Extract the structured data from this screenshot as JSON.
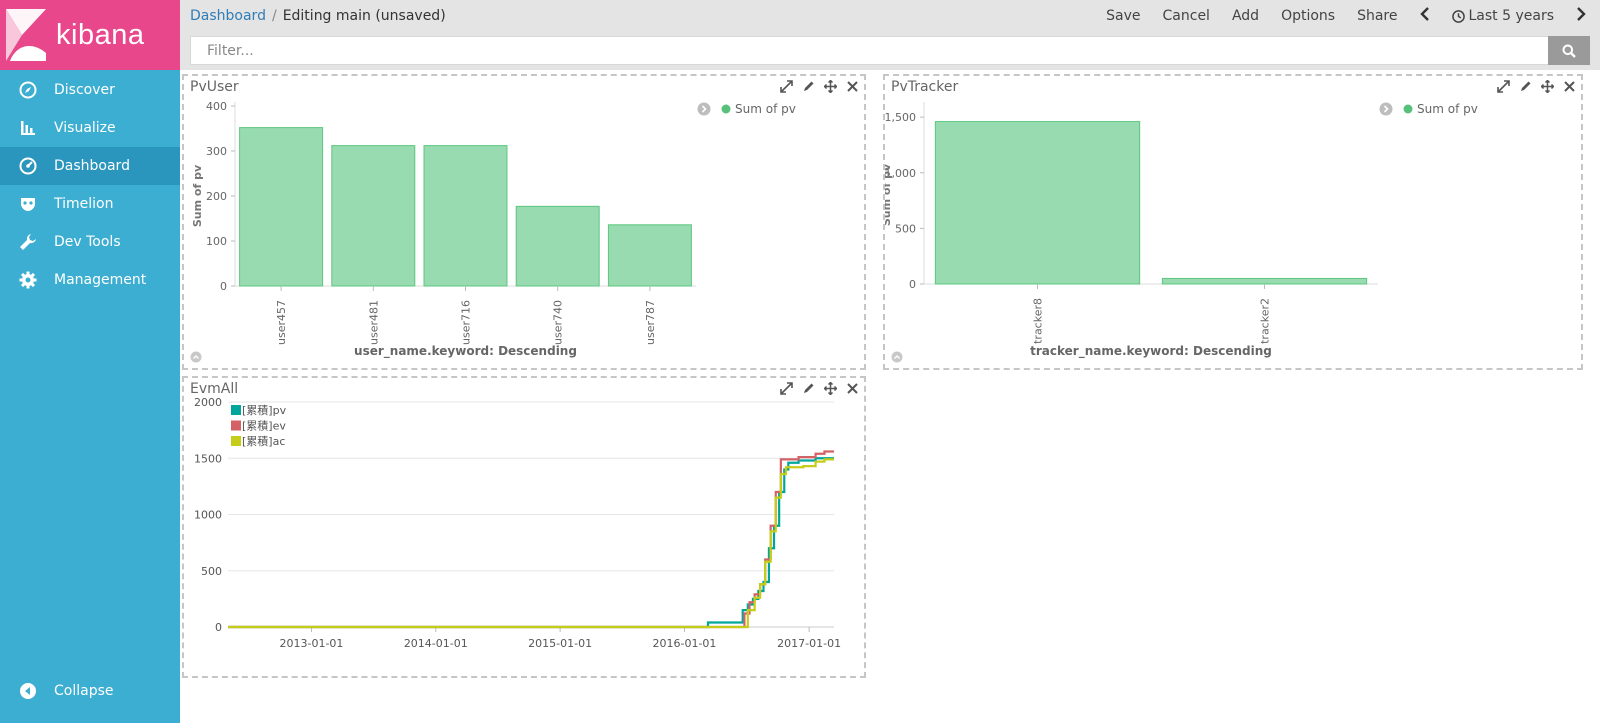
{
  "brand": {
    "name": "kibana"
  },
  "sidebar": {
    "items": [
      {
        "label": "Discover",
        "icon": "compass-icon"
      },
      {
        "label": "Visualize",
        "icon": "bar-chart-icon"
      },
      {
        "label": "Dashboard",
        "icon": "dashboard-gauge-icon",
        "active": true
      },
      {
        "label": "Timelion",
        "icon": "timelion-mask-icon"
      },
      {
        "label": "Dev Tools",
        "icon": "wrench-icon"
      },
      {
        "label": "Management",
        "icon": "gear-icon"
      }
    ],
    "collapse_label": "Collapse"
  },
  "topbar": {
    "breadcrumb_link": "Dashboard",
    "breadcrumb_sep": "/",
    "breadcrumb_current": "Editing main (unsaved)",
    "actions": {
      "save": "Save",
      "cancel": "Cancel",
      "add": "Add",
      "options": "Options",
      "share": "Share"
    },
    "time_range": "Last 5 years"
  },
  "filter": {
    "placeholder": "Filter..."
  },
  "colors": {
    "bar": "#98dbb0",
    "bar_stroke": "#5cc77f",
    "legend_dot": "#57c17b",
    "pv": "#00a69b",
    "ev": "#d36165",
    "ac": "#c6cd18",
    "sidebar": "#3caed2",
    "brand": "#e8488b"
  },
  "panels": {
    "pvuser": {
      "title": "PvUser"
    },
    "pvtracker": {
      "title": "PvTracker"
    },
    "evmall": {
      "title": "EvmAll"
    }
  },
  "chart_data": [
    {
      "id": "pvuser",
      "type": "bar",
      "categories": [
        "user457",
        "user481",
        "user716",
        "user740",
        "user787"
      ],
      "series": [
        {
          "name": "Sum of pv",
          "values": [
            352,
            312,
            312,
            177,
            136
          ]
        }
      ],
      "ylabel": "Sum of pv",
      "xlabel": "user_name.keyword: Descending",
      "ylim": [
        0,
        400
      ],
      "yticks": [
        0,
        100,
        200,
        300,
        400
      ],
      "ytick_labels": [
        "0",
        "100",
        "200",
        "300",
        "400"
      ],
      "legend": "top-right"
    },
    {
      "id": "pvtracker",
      "type": "bar",
      "categories": [
        "tracker8",
        "tracker2"
      ],
      "series": [
        {
          "name": "Sum of pv",
          "values": [
            1460,
            50
          ]
        }
      ],
      "ylabel": "Sum of pv",
      "xlabel": "tracker_name.keyword: Descending",
      "ylim": [
        0,
        1600
      ],
      "yticks": [
        0,
        500,
        1000,
        1500
      ],
      "ytick_labels": [
        "0",
        "500",
        "1,000",
        "1,500"
      ],
      "legend": "top-right"
    },
    {
      "id": "evmall",
      "type": "line",
      "xlim": [
        "2012-05-01",
        "2017-03-15"
      ],
      "xticks": [
        "2013-01-01",
        "2014-01-01",
        "2015-01-01",
        "2016-01-01",
        "2017-01-01"
      ],
      "ylim": [
        0,
        2000
      ],
      "yticks": [
        0,
        500,
        1000,
        1500,
        2000
      ],
      "ytick_labels": [
        "0",
        "500",
        "1000",
        "1500",
        "2000"
      ],
      "legend": "top-left",
      "series": [
        {
          "name": "[累積]pv",
          "color": "#00a69b",
          "points": [
            [
              "2012-05-01",
              0
            ],
            [
              "2016-03-01",
              0
            ],
            [
              "2016-03-10",
              40
            ],
            [
              "2016-06-15",
              40
            ],
            [
              "2016-06-20",
              150
            ],
            [
              "2016-07-05",
              200
            ],
            [
              "2016-07-20",
              250
            ],
            [
              "2016-08-05",
              320
            ],
            [
              "2016-08-20",
              400
            ],
            [
              "2016-09-05",
              700
            ],
            [
              "2016-09-20",
              900
            ],
            [
              "2016-10-05",
              1200
            ],
            [
              "2016-10-20",
              1400
            ],
            [
              "2016-11-01",
              1460
            ],
            [
              "2016-12-01",
              1480
            ],
            [
              "2017-01-20",
              1500
            ],
            [
              "2017-03-15",
              1500
            ]
          ]
        },
        {
          "name": "[累積]ev",
          "color": "#d36165",
          "points": [
            [
              "2012-05-01",
              0
            ],
            [
              "2016-06-10",
              0
            ],
            [
              "2016-06-25",
              120
            ],
            [
              "2016-07-10",
              220
            ],
            [
              "2016-07-25",
              290
            ],
            [
              "2016-08-10",
              380
            ],
            [
              "2016-08-25",
              600
            ],
            [
              "2016-09-10",
              900
            ],
            [
              "2016-09-25",
              1200
            ],
            [
              "2016-10-10",
              1490
            ],
            [
              "2016-12-01",
              1510
            ],
            [
              "2017-01-20",
              1540
            ],
            [
              "2017-02-15",
              1560
            ],
            [
              "2017-03-15",
              1560
            ]
          ]
        },
        {
          "name": "[累積]ac",
          "color": "#c6cd18",
          "points": [
            [
              "2012-05-01",
              0
            ],
            [
              "2016-06-20",
              0
            ],
            [
              "2016-07-05",
              150
            ],
            [
              "2016-07-25",
              260
            ],
            [
              "2016-08-10",
              380
            ],
            [
              "2016-08-25",
              580
            ],
            [
              "2016-09-10",
              850
            ],
            [
              "2016-09-25",
              1150
            ],
            [
              "2016-10-10",
              1360
            ],
            [
              "2016-10-25",
              1420
            ],
            [
              "2016-12-15",
              1430
            ],
            [
              "2017-01-20",
              1470
            ],
            [
              "2017-02-15",
              1490
            ],
            [
              "2017-03-15",
              1490
            ]
          ]
        }
      ]
    }
  ]
}
